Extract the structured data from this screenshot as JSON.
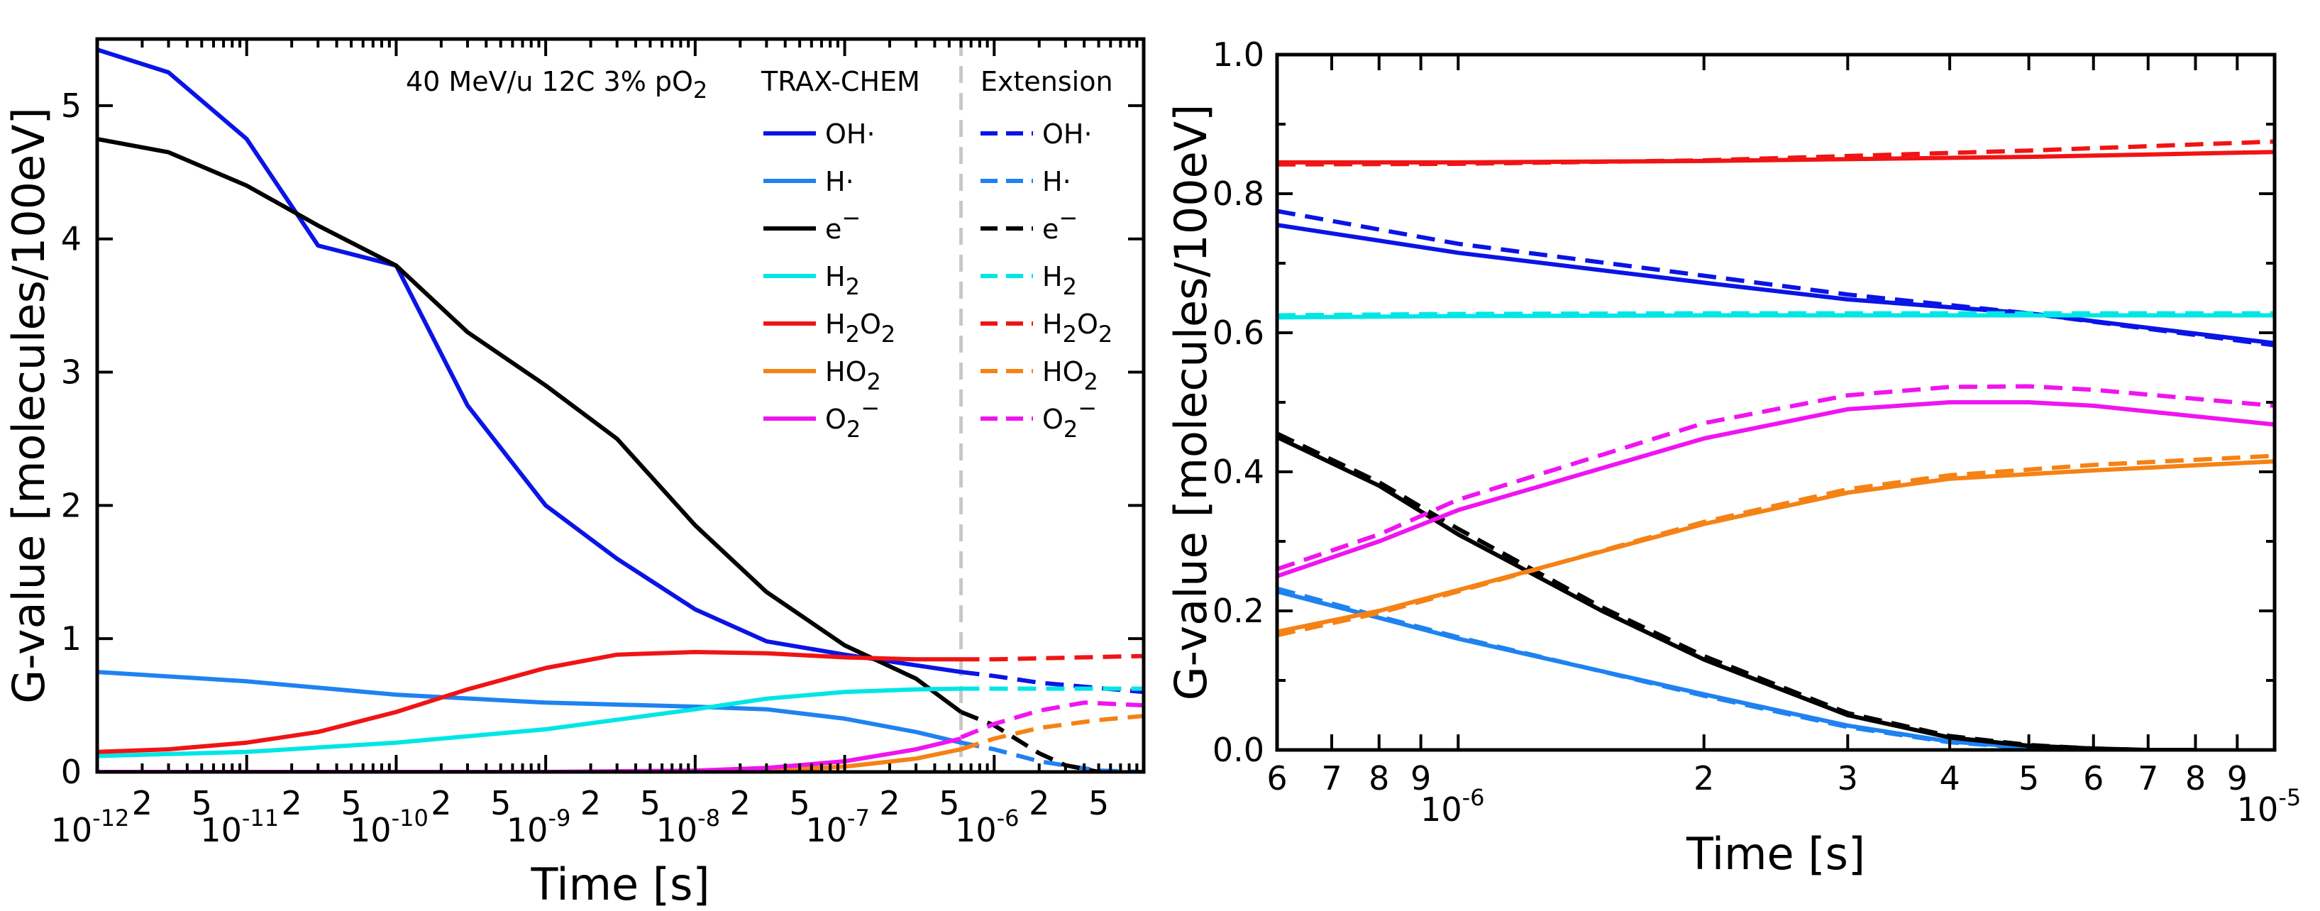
{
  "chart_data": [
    {
      "type": "line",
      "panel": "left",
      "xscale": "log",
      "xlim": [
        1e-12,
        1e-05
      ],
      "ylim": [
        0,
        5.5
      ],
      "xlabel": "Time [s]",
      "ylabel": "G-value [molecules/100eV]",
      "yticks": [
        "0",
        "1",
        "2",
        "3",
        "4",
        "5"
      ],
      "xtick_decades": [
        "10",
        "10",
        "10",
        "10",
        "10",
        "10",
        "10"
      ],
      "xtick_exponents": [
        "-12",
        "-11",
        "-10",
        "-9",
        "-8",
        "-7",
        "-6"
      ],
      "xtick_minor_labels": [
        "2",
        "5"
      ],
      "annotation": "40 MeV/u 12C 3% pO",
      "annotation_sub": "2",
      "legend_header_solid": "TRAX-CHEM",
      "legend_header_dashed": "Extension",
      "legend": [
        {
          "key": "OH",
          "text": "OH",
          "suffix": "·",
          "color": "#0a14e6"
        },
        {
          "key": "H",
          "text": "H",
          "suffix": "·",
          "color": "#1f82f0"
        },
        {
          "key": "e",
          "text": "e",
          "sup": "−",
          "color": "#000000"
        },
        {
          "key": "H2",
          "text": "H",
          "sub": "2",
          "color": "#00e6e6"
        },
        {
          "key": "H2O2",
          "text": "H",
          "sub": "2",
          "text2": "O",
          "sub2": "2",
          "color": "#f01414"
        },
        {
          "key": "HO2",
          "text": "HO",
          "sub": "2",
          "color": "#f58214"
        },
        {
          "key": "O2m",
          "text": "O",
          "sub": "2",
          "sup": "−",
          "color": "#f014f0"
        }
      ],
      "extension_start_s": 6e-07,
      "series": [
        {
          "name": "OH",
          "style": "solid",
          "color": "#0a14e6",
          "x": [
            1e-12,
            3e-12,
            1e-11,
            3e-11,
            1e-10,
            3e-10,
            1e-09,
            3e-09,
            1e-08,
            3e-08,
            1e-07,
            3e-07,
            6e-07
          ],
          "y": [
            5.42,
            5.25,
            4.75,
            3.95,
            3.8,
            2.75,
            2.0,
            1.6,
            1.22,
            0.98,
            0.88,
            0.8,
            0.75
          ]
        },
        {
          "name": "OH",
          "style": "dashed",
          "color": "#0a14e6",
          "x": [
            6e-07,
            1e-06,
            2e-06,
            5e-06,
            1e-05
          ],
          "y": [
            0.75,
            0.72,
            0.67,
            0.63,
            0.6
          ]
        },
        {
          "name": "H",
          "style": "solid",
          "color": "#1f82f0",
          "x": [
            1e-12,
            1e-11,
            1e-10,
            1e-09,
            1e-08,
            3e-08,
            1e-07,
            3e-07,
            6e-07
          ],
          "y": [
            0.75,
            0.68,
            0.58,
            0.52,
            0.49,
            0.47,
            0.4,
            0.3,
            0.22
          ]
        },
        {
          "name": "H",
          "style": "dashed",
          "color": "#1f82f0",
          "x": [
            6e-07,
            1e-06,
            2e-06,
            5e-06,
            1e-05
          ],
          "y": [
            0.22,
            0.17,
            0.08,
            0.01,
            0.0
          ]
        },
        {
          "name": "e-",
          "style": "solid",
          "color": "#000000",
          "x": [
            1e-12,
            3e-12,
            1e-11,
            3e-11,
            1e-10,
            3e-10,
            1e-09,
            3e-09,
            1e-08,
            3e-08,
            1e-07,
            3e-07,
            6e-07
          ],
          "y": [
            4.75,
            4.65,
            4.4,
            4.1,
            3.8,
            3.3,
            2.9,
            2.5,
            1.85,
            1.35,
            0.95,
            0.7,
            0.45
          ]
        },
        {
          "name": "e-",
          "style": "dashed",
          "color": "#000000",
          "x": [
            6e-07,
            1e-06,
            2e-06,
            3e-06,
            5e-06
          ],
          "y": [
            0.45,
            0.35,
            0.14,
            0.05,
            0.0
          ]
        },
        {
          "name": "H2",
          "style": "solid",
          "color": "#00e6e6",
          "x": [
            1e-12,
            1e-11,
            1e-10,
            1e-09,
            1e-08,
            3e-08,
            1e-07,
            3e-07,
            6e-07
          ],
          "y": [
            0.12,
            0.15,
            0.22,
            0.32,
            0.47,
            0.55,
            0.6,
            0.62,
            0.625
          ]
        },
        {
          "name": "H2",
          "style": "dashed",
          "color": "#00e6e6",
          "x": [
            6e-07,
            1e-06,
            1e-05
          ],
          "y": [
            0.625,
            0.625,
            0.625
          ]
        },
        {
          "name": "H2O2",
          "style": "solid",
          "color": "#f01414",
          "x": [
            1e-12,
            3e-12,
            1e-11,
            3e-11,
            1e-10,
            3e-10,
            1e-09,
            3e-09,
            1e-08,
            3e-08,
            1e-07,
            3e-07,
            6e-07
          ],
          "y": [
            0.15,
            0.17,
            0.22,
            0.3,
            0.45,
            0.62,
            0.78,
            0.88,
            0.9,
            0.89,
            0.86,
            0.845,
            0.845
          ]
        },
        {
          "name": "H2O2",
          "style": "dashed",
          "color": "#f01414",
          "x": [
            6e-07,
            1e-06,
            1e-05
          ],
          "y": [
            0.845,
            0.845,
            0.87
          ]
        },
        {
          "name": "HO2",
          "style": "solid",
          "color": "#f58214",
          "x": [
            1e-12,
            1e-09,
            1e-08,
            3e-08,
            1e-07,
            3e-07,
            6e-07
          ],
          "y": [
            0.0,
            0.0,
            0.0,
            0.01,
            0.04,
            0.1,
            0.17
          ]
        },
        {
          "name": "HO2",
          "style": "dashed",
          "color": "#f58214",
          "x": [
            6e-07,
            1e-06,
            2e-06,
            5e-06,
            1e-05
          ],
          "y": [
            0.17,
            0.25,
            0.33,
            0.39,
            0.42
          ]
        },
        {
          "name": "O2-",
          "style": "solid",
          "color": "#f014f0",
          "x": [
            1e-12,
            1e-09,
            1e-08,
            3e-08,
            1e-07,
            3e-07,
            6e-07
          ],
          "y": [
            0.0,
            0.0,
            0.01,
            0.03,
            0.08,
            0.17,
            0.25
          ]
        },
        {
          "name": "O2-",
          "style": "dashed",
          "color": "#f014f0",
          "x": [
            6e-07,
            1e-06,
            2e-06,
            4e-06,
            1e-05
          ],
          "y": [
            0.26,
            0.36,
            0.46,
            0.52,
            0.5
          ]
        }
      ]
    },
    {
      "type": "line",
      "panel": "right",
      "xscale": "log",
      "xlim": [
        6e-07,
        1e-05
      ],
      "ylim": [
        0,
        1.0
      ],
      "xlabel": "Time [s]",
      "ylabel": "G-value [molecules/100eV]",
      "yticks": [
        "0.0",
        "0.2",
        "0.4",
        "0.6",
        "0.8",
        "1.0"
      ],
      "xtick_labels": [
        "6",
        "7",
        "8",
        "9",
        "2",
        "3",
        "4",
        "5",
        "6",
        "7",
        "8",
        "9"
      ],
      "xtick_decades": [
        "10",
        "10"
      ],
      "xtick_exponents": [
        "-6",
        "-5"
      ],
      "series": [
        {
          "name": "OH",
          "style": "solid",
          "color": "#0a14e6",
          "x": [
            6e-07,
            1e-06,
            2e-06,
            3e-06,
            5e-06,
            1e-05
          ],
          "y": [
            0.755,
            0.715,
            0.672,
            0.648,
            0.628,
            0.585
          ]
        },
        {
          "name": "OH",
          "style": "dashed",
          "color": "#0a14e6",
          "x": [
            6e-07,
            1e-06,
            2e-06,
            3e-06,
            5e-06,
            1e-05
          ],
          "y": [
            0.775,
            0.728,
            0.682,
            0.655,
            0.628,
            0.582
          ]
        },
        {
          "name": "H",
          "style": "solid",
          "color": "#1f82f0",
          "x": [
            6e-07,
            8e-07,
            1e-06,
            2e-06,
            3e-06,
            4e-06,
            5e-06,
            6e-06
          ],
          "y": [
            0.228,
            0.19,
            0.16,
            0.08,
            0.035,
            0.012,
            0.004,
            0.0
          ]
        },
        {
          "name": "H",
          "style": "dashed",
          "color": "#1f82f0",
          "x": [
            6e-07,
            8e-07,
            1e-06,
            2e-06,
            3e-06,
            4e-06,
            5e-06,
            6e-06
          ],
          "y": [
            0.232,
            0.192,
            0.162,
            0.078,
            0.033,
            0.011,
            0.003,
            0.0
          ]
        },
        {
          "name": "e-",
          "style": "solid",
          "color": "#000000",
          "x": [
            6e-07,
            8e-07,
            1e-06,
            1.5e-06,
            2e-06,
            3e-06,
            4e-06,
            5e-06,
            6e-06,
            7e-06,
            8e-06
          ],
          "y": [
            0.45,
            0.38,
            0.31,
            0.2,
            0.13,
            0.05,
            0.018,
            0.006,
            0.002,
            0.0,
            0.0
          ]
        },
        {
          "name": "e-",
          "style": "dashed",
          "color": "#000000",
          "x": [
            6e-07,
            8e-07,
            1e-06,
            1.5e-06,
            2e-06,
            3e-06,
            4e-06,
            5e-06,
            6e-06,
            7e-06,
            8e-06
          ],
          "y": [
            0.455,
            0.385,
            0.318,
            0.205,
            0.135,
            0.053,
            0.02,
            0.007,
            0.002,
            0.0,
            0.0
          ]
        },
        {
          "name": "H2",
          "style": "solid",
          "color": "#00e6e6",
          "x": [
            6e-07,
            1e-06,
            2e-06,
            5e-06,
            1e-05
          ],
          "y": [
            0.622,
            0.624,
            0.625,
            0.625,
            0.625
          ]
        },
        {
          "name": "H2",
          "style": "dashed",
          "color": "#00e6e6",
          "x": [
            6e-07,
            1e-06,
            2e-06,
            5e-06,
            1e-05
          ],
          "y": [
            0.625,
            0.627,
            0.628,
            0.628,
            0.628
          ]
        },
        {
          "name": "H2O2",
          "style": "solid",
          "color": "#f01414",
          "x": [
            6e-07,
            1e-06,
            2e-06,
            5e-06,
            1e-05
          ],
          "y": [
            0.845,
            0.845,
            0.847,
            0.853,
            0.86
          ]
        },
        {
          "name": "H2O2",
          "style": "dashed",
          "color": "#f01414",
          "x": [
            6e-07,
            1e-06,
            2e-06,
            5e-06,
            1e-05
          ],
          "y": [
            0.842,
            0.843,
            0.848,
            0.862,
            0.875
          ]
        },
        {
          "name": "HO2",
          "style": "solid",
          "color": "#f58214",
          "x": [
            6e-07,
            8e-07,
            1e-06,
            2e-06,
            3e-06,
            4e-06,
            6e-06,
            1e-05
          ],
          "y": [
            0.17,
            0.2,
            0.23,
            0.325,
            0.37,
            0.39,
            0.402,
            0.415
          ]
        },
        {
          "name": "HO2",
          "style": "dashed",
          "color": "#f58214",
          "x": [
            6e-07,
            8e-07,
            1e-06,
            2e-06,
            3e-06,
            4e-06,
            6e-06,
            1e-05
          ],
          "y": [
            0.165,
            0.197,
            0.228,
            0.328,
            0.375,
            0.395,
            0.41,
            0.423
          ]
        },
        {
          "name": "O2-",
          "style": "solid",
          "color": "#f014f0",
          "x": [
            6e-07,
            8e-07,
            1e-06,
            2e-06,
            3e-06,
            4e-06,
            5e-06,
            6e-06,
            1e-05
          ],
          "y": [
            0.25,
            0.3,
            0.345,
            0.448,
            0.49,
            0.5,
            0.5,
            0.495,
            0.468
          ]
        },
        {
          "name": "O2-",
          "style": "dashed",
          "color": "#f014f0",
          "x": [
            6e-07,
            8e-07,
            1e-06,
            2e-06,
            3e-06,
            4e-06,
            5e-06,
            6e-06,
            1e-05
          ],
          "y": [
            0.26,
            0.31,
            0.36,
            0.47,
            0.51,
            0.522,
            0.523,
            0.518,
            0.495
          ]
        }
      ]
    }
  ]
}
